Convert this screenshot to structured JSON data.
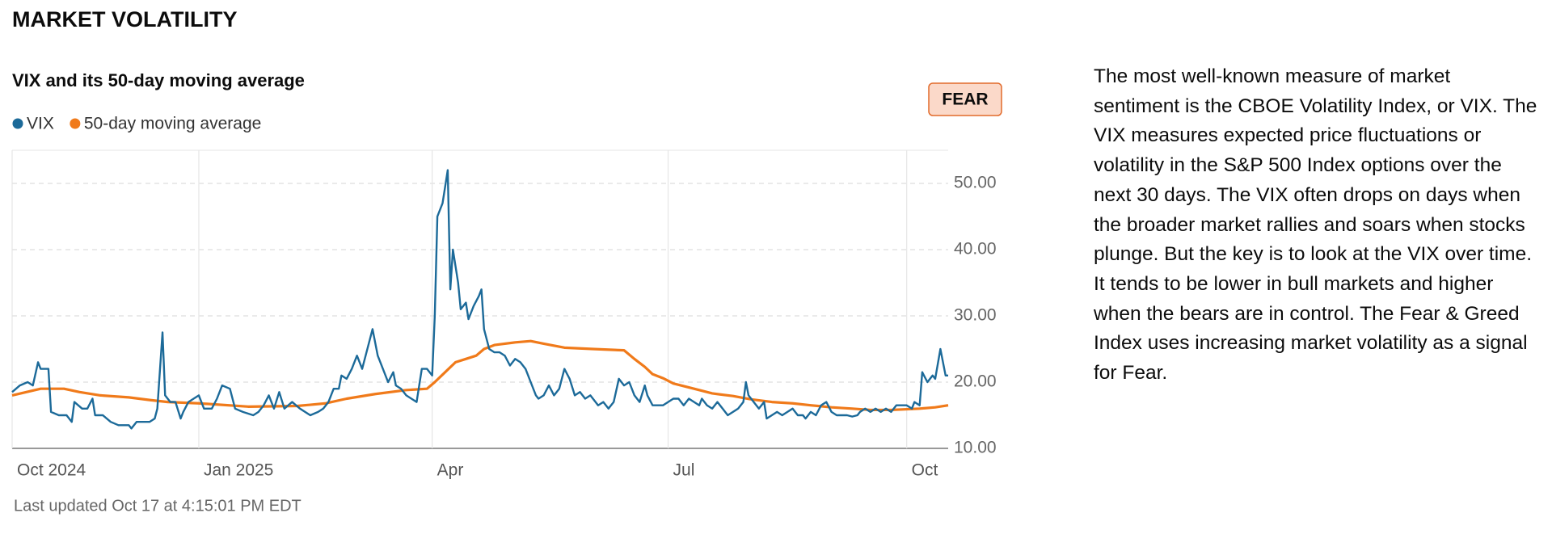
{
  "header": {
    "title": "MARKET VOLATILITY"
  },
  "chart_data": {
    "type": "line",
    "title": "VIX and its 50-day moving average",
    "badge": "FEAR",
    "xlim": [
      0,
      361
    ],
    "xticks": [
      {
        "value": 0,
        "label": "Oct 2024"
      },
      {
        "value": 72,
        "label": "Jan 2025"
      },
      {
        "value": 162,
        "label": "Apr"
      },
      {
        "value": 253,
        "label": "Jul"
      },
      {
        "value": 345,
        "label": "Oct"
      }
    ],
    "ylim": [
      10,
      55
    ],
    "yticks": [
      {
        "value": 10,
        "label": "10.00"
      },
      {
        "value": 20,
        "label": "20.00"
      },
      {
        "value": 30,
        "label": "30.00"
      },
      {
        "value": 40,
        "label": "40.00"
      },
      {
        "value": 50,
        "label": "50.00"
      }
    ],
    "grid": true,
    "series": [
      {
        "name": "VIX",
        "color": "#1c6a99",
        "x": [
          0,
          3,
          6,
          8,
          10,
          11,
          14,
          15,
          18,
          21,
          23,
          24,
          27,
          29,
          31,
          32,
          35,
          38,
          41,
          45,
          46,
          48,
          51,
          53,
          55,
          56,
          58,
          59,
          61,
          63,
          65,
          66,
          68,
          70,
          72,
          74,
          77,
          79,
          81,
          84,
          86,
          89,
          93,
          95,
          97,
          99,
          101,
          103,
          105,
          108,
          111,
          115,
          118,
          120,
          122,
          124,
          126,
          127,
          129,
          131,
          133,
          135,
          137,
          139,
          141,
          143,
          145,
          147,
          148,
          150,
          152,
          154,
          156,
          158,
          160,
          162,
          163,
          164,
          166,
          168,
          169,
          170,
          172,
          173,
          175,
          176,
          178,
          180,
          181,
          182,
          184,
          186,
          188,
          190,
          192,
          194,
          196,
          198,
          200,
          202,
          203,
          205,
          207,
          209,
          211,
          213,
          215,
          217,
          219,
          221,
          223,
          224,
          226,
          228,
          230,
          232,
          234,
          236,
          238,
          240,
          242,
          244,
          245,
          247,
          249,
          251,
          253,
          255,
          257,
          259,
          261,
          263,
          265,
          266,
          268,
          270,
          272,
          274,
          276,
          278,
          280,
          282,
          283,
          284,
          286,
          288,
          290,
          291,
          293,
          295,
          297,
          299,
          301,
          303,
          305,
          306,
          308,
          310,
          312,
          314,
          316,
          318,
          320,
          322,
          324,
          326,
          327,
          329,
          331,
          333,
          335,
          337,
          339,
          341,
          343,
          345,
          347,
          348,
          350,
          351,
          353,
          355,
          356,
          358,
          360,
          361
        ],
        "values": [
          18.5,
          19.5,
          20,
          19.5,
          23,
          22,
          22,
          15.5,
          15,
          15,
          14,
          17,
          16,
          16,
          17.5,
          15,
          15,
          14,
          13.5,
          13.5,
          13,
          14,
          14,
          14,
          14.5,
          16,
          27.5,
          18,
          17,
          17,
          14.5,
          15.5,
          17,
          17.5,
          18,
          16,
          16,
          17.5,
          19.5,
          19,
          16,
          15.5,
          15,
          15.5,
          16.5,
          18,
          16,
          18.5,
          16,
          17,
          16,
          15,
          15.5,
          16,
          17,
          19,
          19,
          21,
          20.5,
          22,
          24,
          22,
          25,
          28,
          24,
          22,
          20,
          21.5,
          19.5,
          19,
          18,
          17.5,
          17,
          22,
          22,
          21,
          30,
          45,
          47,
          52,
          34,
          40,
          35,
          31,
          32,
          29.5,
          31.5,
          33,
          34,
          28,
          25,
          24.5,
          24.5,
          24,
          22.5,
          23.5,
          23,
          22,
          20,
          18,
          17.5,
          18,
          19.5,
          18,
          19,
          22,
          20.5,
          18,
          18.5,
          17.5,
          18,
          17.5,
          16.5,
          17,
          16,
          17,
          20.5,
          19.5,
          20,
          18,
          17,
          19.5,
          18,
          16.5,
          16.5,
          16.5,
          17,
          17.5,
          17.5,
          16.5,
          17.5,
          17,
          16.5,
          17.5,
          16.5,
          16,
          17,
          16,
          15,
          15.5,
          16,
          17,
          20,
          18,
          17,
          16,
          17,
          14.5,
          15,
          15.5,
          15,
          15.5,
          16,
          15,
          15,
          14.5,
          15.5,
          15,
          16.5,
          17,
          15.5,
          15,
          15,
          15,
          14.8,
          15,
          15.5,
          16,
          15.5,
          16,
          15.5,
          16,
          15.5,
          16.5,
          16.5,
          16.5,
          16,
          17,
          16.5,
          21.5,
          20,
          21,
          20.5,
          25,
          21,
          21
        ]
      },
      {
        "name": "50-day moving average",
        "color": "#f07a1a",
        "x": [
          0,
          11,
          20,
          26,
          34,
          45,
          53,
          60,
          72,
          91,
          110,
          121,
          129,
          140,
          152,
          160,
          163,
          167,
          171,
          175,
          179,
          182,
          186,
          194,
          200,
          205,
          213,
          224,
          236,
          240,
          244,
          247,
          251,
          255,
          263,
          270,
          278,
          285,
          293,
          301,
          308,
          316,
          324,
          331,
          339,
          350,
          356,
          361
        ],
        "values": [
          18,
          19,
          19,
          18.5,
          18,
          17.7,
          17.3,
          17,
          16.8,
          16.3,
          16.4,
          16.8,
          17.5,
          18.2,
          18.8,
          19,
          20,
          21.5,
          23,
          23.5,
          24,
          25,
          25.6,
          26,
          26.2,
          25.8,
          25.2,
          25,
          24.8,
          23.5,
          22.3,
          21.2,
          20.6,
          19.8,
          19,
          18.3,
          17.9,
          17.4,
          17,
          16.8,
          16.5,
          16.2,
          16,
          15.8,
          15.8,
          16,
          16.2,
          16.5
        ]
      }
    ]
  },
  "last_updated": "Last updated Oct 17 at 4:15:01 PM EDT",
  "paragraph": "The most well-known measure of market sentiment is the CBOE Volatility Index, or VIX. The VIX measures expected price fluctuations or volatility in the S&P 500 Index options over the next 30 days. The VIX often drops on days when the broader market rallies and soars when stocks plunge. But the key is to look at the VIX over time. It tends to be lower in bull markets and higher when the bears are in control. The Fear & Greed Index uses increasing market volatility as a signal for Fear."
}
